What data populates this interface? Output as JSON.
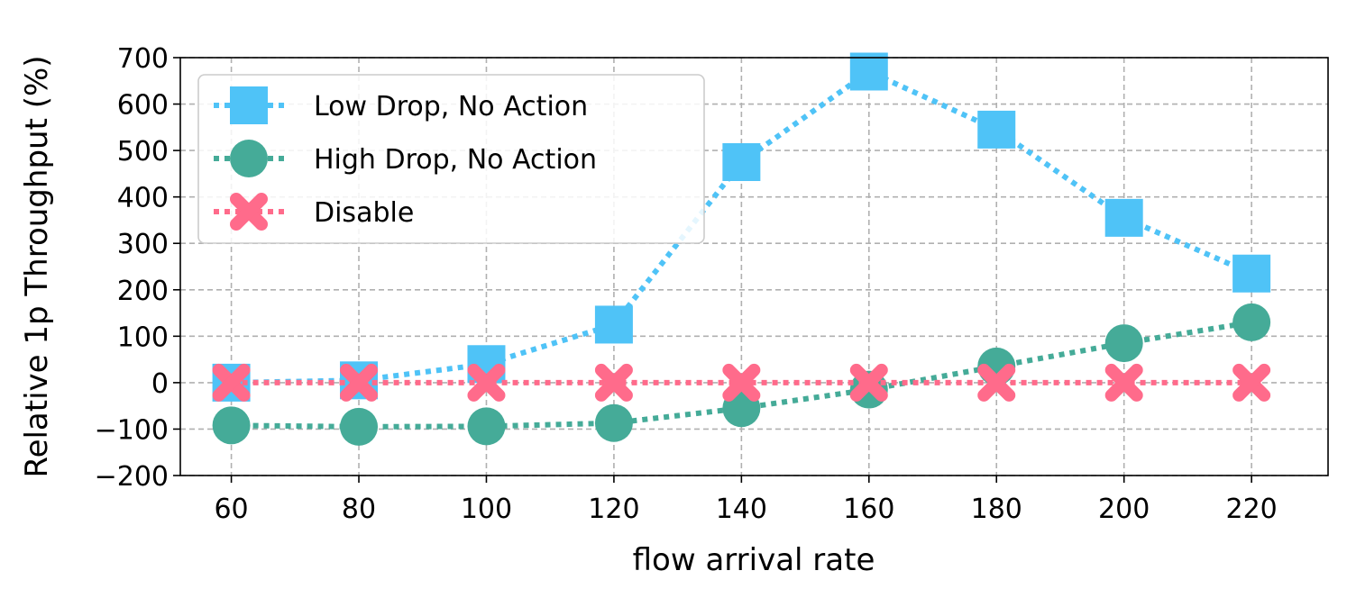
{
  "chart_data": {
    "type": "line",
    "title": "",
    "xlabel": "flow arrival rate",
    "ylabel": "Relative 1p Throughput (%)",
    "x": [
      60,
      80,
      100,
      120,
      140,
      160,
      180,
      200,
      220
    ],
    "xlim": [
      52,
      232
    ],
    "ylim": [
      -200,
      700
    ],
    "yticks": [
      -200,
      -100,
      0,
      100,
      200,
      300,
      400,
      500,
      600,
      700
    ],
    "ytick_labels": [
      "−200",
      "−100",
      "0",
      "100",
      "200",
      "300",
      "400",
      "500",
      "600",
      "700"
    ],
    "xtick_labels": [
      "60",
      "80",
      "100",
      "120",
      "140",
      "160",
      "180",
      "200",
      "220"
    ],
    "grid": true,
    "legend_position": "top-left",
    "series": [
      {
        "name": "Low Drop, No Action",
        "marker": "square",
        "color": "#4FC3F7",
        "values": [
          0,
          5,
          40,
          125,
          475,
          670,
          545,
          355,
          235
        ]
      },
      {
        "name": "High Drop, No Action",
        "marker": "circle",
        "color": "#45AB98",
        "values": [
          -92,
          -95,
          -94,
          -87,
          -55,
          -15,
          35,
          85,
          130
        ]
      },
      {
        "name": "Disable",
        "marker": "x",
        "color": "#FF6B8B",
        "values": [
          0,
          0,
          0,
          0,
          0,
          0,
          0,
          0,
          0
        ]
      }
    ]
  }
}
